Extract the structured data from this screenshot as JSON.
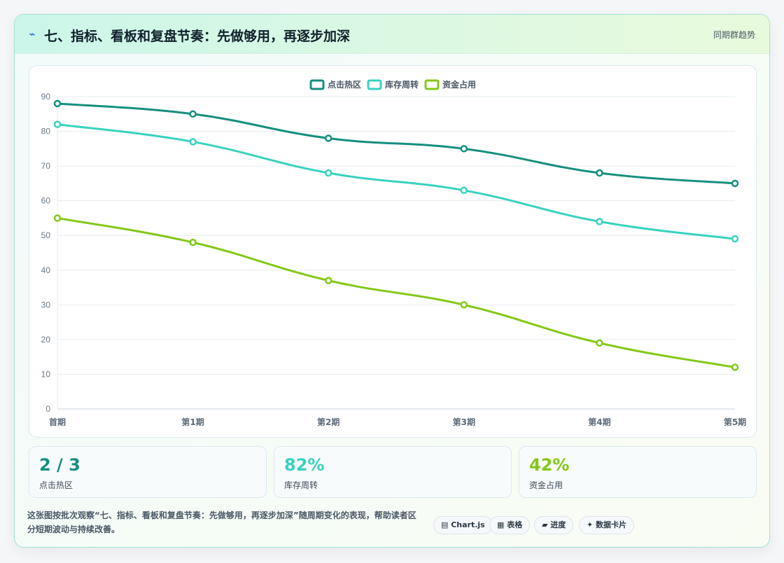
{
  "header": {
    "icon": "lightning-icon",
    "icon_glyph": "⌁",
    "title": "七、指标、看板和复盘节奏：先做够用，再逐步加深",
    "right_label": "同期群趋势"
  },
  "chart_data": {
    "type": "line",
    "categories": [
      "首期",
      "第1期",
      "第2期",
      "第3期",
      "第4期",
      "第5期"
    ],
    "series": [
      {
        "name": "点击热区",
        "color": "#148f7f",
        "values": [
          88,
          85,
          78,
          75,
          68,
          65
        ]
      },
      {
        "name": "库存周转",
        "color": "#37d2bf",
        "values": [
          82,
          77,
          68,
          63,
          54,
          49
        ]
      },
      {
        "name": "资金占用",
        "color": "#84c816",
        "values": [
          55,
          48,
          37,
          30,
          19,
          12
        ]
      }
    ],
    "ylim": [
      0,
      90
    ],
    "yticks": [
      0,
      10,
      20,
      30,
      40,
      50,
      60,
      70,
      80,
      90
    ],
    "grid": true,
    "legend_position": "top-center"
  },
  "stats": [
    {
      "value": "2 / 3",
      "label": "点击热区",
      "color": "#148f7f"
    },
    {
      "value": "82%",
      "label": "库存周转",
      "color": "#37d2bf"
    },
    {
      "value": "42%",
      "label": "资金占用",
      "color": "#84c816"
    }
  ],
  "description": "这张图按批次观察“七、指标、看板和复盘节奏：先做够用，再逐步加深”随周期变化的表现，帮助读者区分短期波动与持续改善。",
  "tags": [
    {
      "icon": "table-icon",
      "label": "▤ Chart.js"
    },
    {
      "icon": "grid-icon",
      "label": "▦ 表格"
    },
    {
      "icon": "progress-icon",
      "label": "▰ 进度"
    },
    {
      "icon": "sparkle-icon",
      "label": "✦ 数据卡片"
    }
  ]
}
